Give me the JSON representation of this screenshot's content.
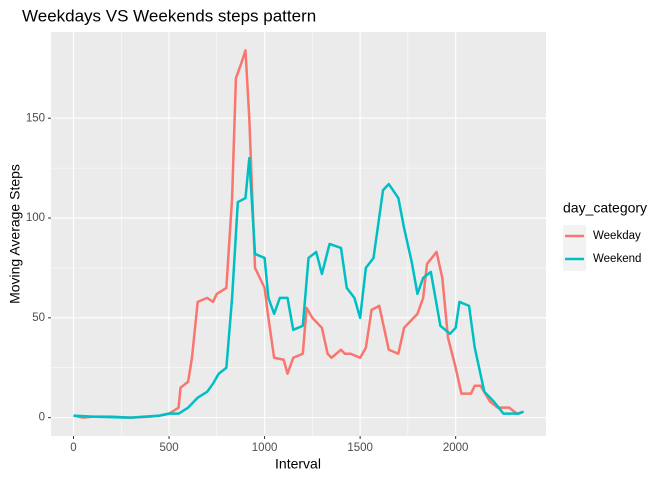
{
  "chart_data": {
    "type": "line",
    "title": "Weekdays VS Weekends steps pattern",
    "x_label": "Interval",
    "y_label": "Moving Average Steps",
    "legend_title": "day_category",
    "xlim": [
      -117.75,
      2472.75
    ],
    "ylim": [
      -9.2,
      193.2
    ],
    "xticks": [
      0,
      500,
      1000,
      1500,
      2000
    ],
    "yticks": [
      0,
      50,
      100,
      150
    ],
    "grid": true,
    "legend": "right",
    "series": [
      {
        "name": "Weekday",
        "color": "#F8766D",
        "x": [
          0,
          50,
          100,
          200,
          300,
          400,
          450,
          500,
          550,
          560,
          600,
          620,
          650,
          700,
          730,
          750,
          800,
          830,
          850,
          880,
          900,
          920,
          950,
          1000,
          1020,
          1050,
          1100,
          1120,
          1150,
          1200,
          1220,
          1250,
          1300,
          1330,
          1350,
          1400,
          1420,
          1450,
          1500,
          1530,
          1560,
          1600,
          1650,
          1700,
          1730,
          1750,
          1800,
          1830,
          1850,
          1900,
          1930,
          1960,
          2000,
          2030,
          2080,
          2100,
          2130,
          2180,
          2220,
          2280,
          2320,
          2355
        ],
        "values": [
          1,
          0,
          0.5,
          0.5,
          0,
          0.5,
          1,
          2,
          5,
          15,
          18,
          30,
          58,
          60,
          58,
          62,
          65,
          110,
          170,
          178,
          184,
          150,
          75,
          65,
          50,
          30,
          29,
          22,
          30,
          32,
          55,
          50,
          45,
          32,
          30,
          34,
          32,
          32,
          30,
          35,
          54,
          56,
          34,
          32,
          45,
          47,
          52,
          60,
          77,
          83,
          70,
          40,
          25,
          12,
          12,
          16,
          16,
          8,
          5,
          5,
          2,
          3
        ]
      },
      {
        "name": "Weekend",
        "color": "#00BFC4",
        "x": [
          0,
          100,
          300,
          450,
          500,
          550,
          600,
          650,
          700,
          730,
          760,
          800,
          830,
          860,
          900,
          920,
          950,
          1000,
          1020,
          1050,
          1080,
          1120,
          1150,
          1200,
          1230,
          1270,
          1300,
          1340,
          1400,
          1430,
          1470,
          1500,
          1530,
          1570,
          1620,
          1650,
          1700,
          1730,
          1770,
          1800,
          1830,
          1870,
          1920,
          1970,
          2000,
          2020,
          2070,
          2100,
          2150,
          2200,
          2250,
          2300,
          2330,
          2355
        ],
        "values": [
          1,
          0.5,
          0,
          1,
          2,
          2,
          5,
          10,
          13,
          17,
          22,
          25,
          60,
          108,
          110,
          130,
          82,
          80,
          60,
          52,
          60,
          60,
          44,
          46,
          80,
          83,
          72,
          87,
          85,
          65,
          60,
          50,
          75,
          80,
          114,
          117,
          110,
          95,
          78,
          62,
          70,
          73,
          46,
          42,
          45,
          58,
          56,
          35,
          13,
          8,
          2,
          2,
          2,
          3
        ]
      }
    ]
  }
}
